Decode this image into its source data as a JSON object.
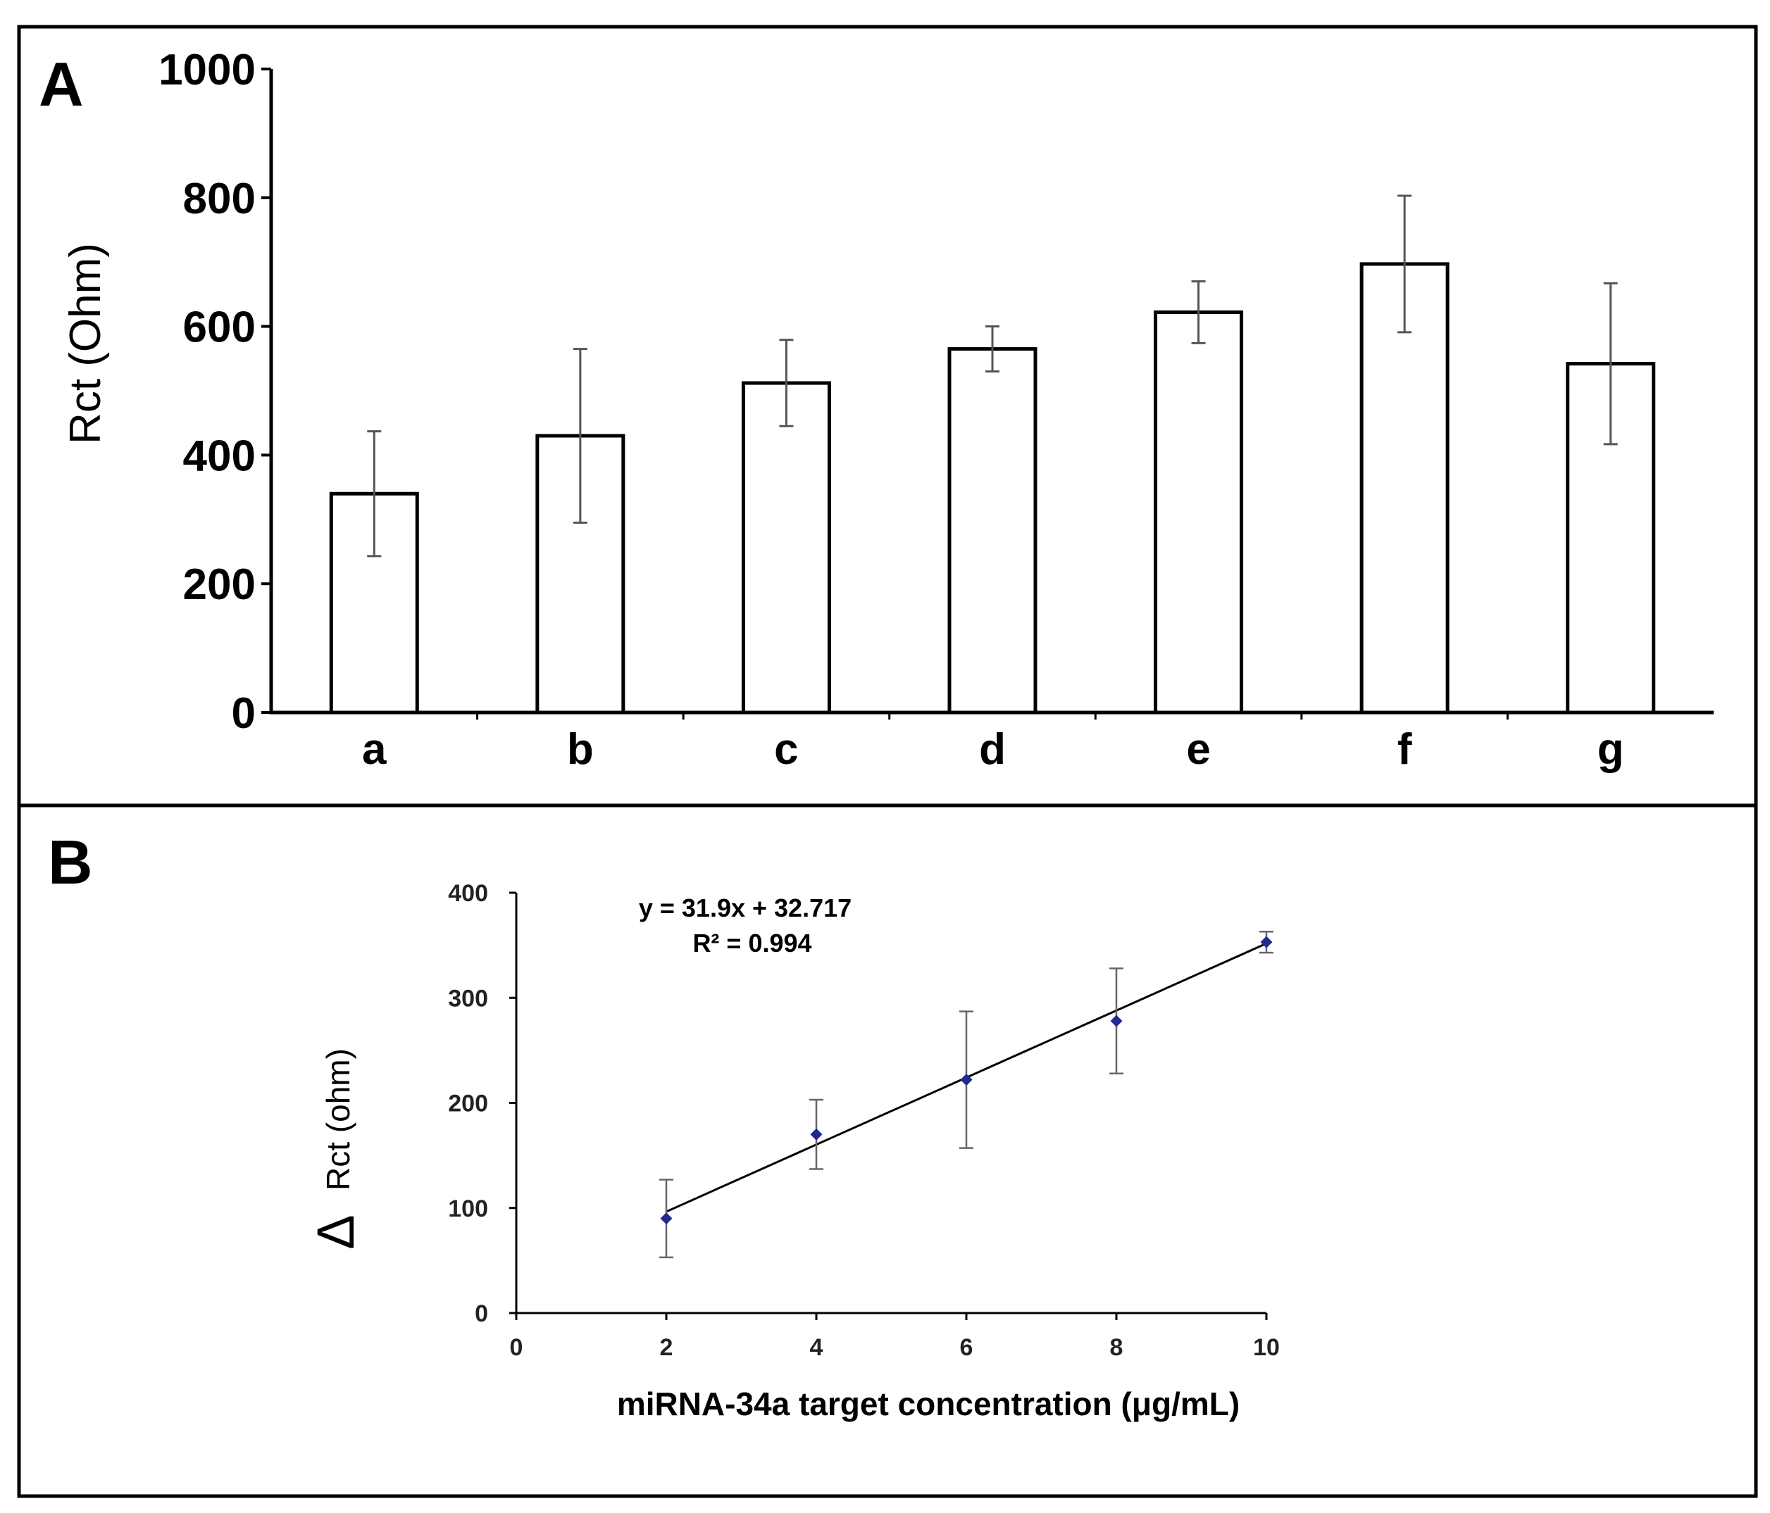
{
  "chart_data": [
    {
      "panel": "A",
      "type": "bar",
      "categories": [
        "a",
        "b",
        "c",
        "d",
        "e",
        "f",
        "g"
      ],
      "values": [
        340,
        430,
        512,
        565,
        622,
        697,
        542
      ],
      "errors": [
        97,
        135,
        67,
        35,
        48,
        106,
        125
      ],
      "ylabel": "Rct (Ohm)",
      "xlabel": "",
      "ylim": [
        0,
        1000
      ],
      "yticks": [
        "0",
        "200",
        "400",
        "600",
        "800",
        "1000"
      ],
      "legend": "none",
      "grid": false
    },
    {
      "panel": "B",
      "type": "scatter",
      "x": [
        2,
        4,
        6,
        8,
        10
      ],
      "y": [
        90,
        170,
        222,
        278,
        353
      ],
      "errors": [
        37,
        33,
        65,
        50,
        10
      ],
      "marker_color": "#1f2b8f",
      "xlabel": "miRNA-34a target concentration (μg/mL)",
      "ylabel_symbol": "Δ",
      "ylabel": "Rct (ohm)",
      "xlim": [
        0,
        10
      ],
      "ylim": [
        0,
        400
      ],
      "xticks": [
        "0",
        "2",
        "4",
        "6",
        "8",
        "10"
      ],
      "yticks": [
        "0",
        "100",
        "200",
        "300",
        "400"
      ],
      "trendline": {
        "slope": 31.9,
        "intercept": 32.717,
        "x_from": 2,
        "x_to": 10
      },
      "equation": "y = 31.9x + 32.717",
      "r_squared": "R² = 0.994",
      "grid": false
    }
  ]
}
